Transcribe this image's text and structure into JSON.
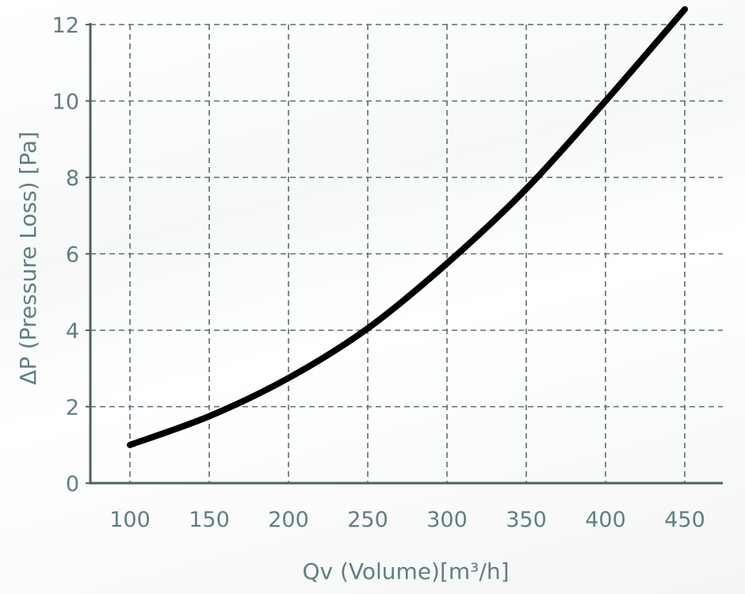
{
  "chart_data": {
    "type": "line",
    "title": "",
    "xlabel": "Qv (Volume)[m³/h]",
    "ylabel": "ΔP (Pressure Loss) [Pa]",
    "xlim": [
      100,
      450
    ],
    "ylim": [
      0,
      12
    ],
    "x_ticks": [
      "100",
      "150",
      "200",
      "250",
      "300",
      "350",
      "400",
      "450"
    ],
    "y_ticks": [
      "0",
      "2",
      "4",
      "6",
      "8",
      "10",
      "12"
    ],
    "grid": true,
    "grid_style": "dashed",
    "series": [
      {
        "x": [
          100,
          150,
          200,
          250,
          300,
          350,
          400,
          450
        ],
        "y": [
          1.0,
          1.75,
          2.75,
          4.05,
          5.75,
          7.7,
          10.0,
          12.4
        ]
      }
    ],
    "colors": {
      "line": "#000000",
      "grid": "#5a6e70",
      "axis": "#4a6264",
      "text": "#5f7f82"
    }
  }
}
